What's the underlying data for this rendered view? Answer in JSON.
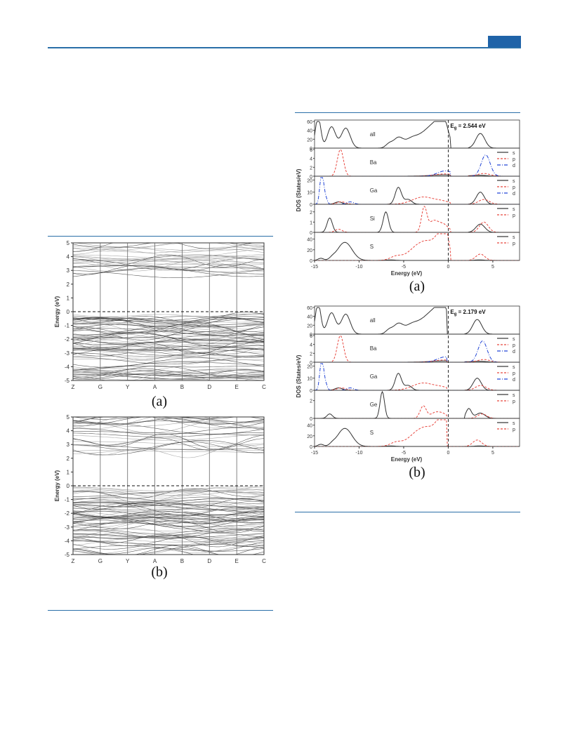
{
  "colors": {
    "rule": "#2a6fa8",
    "tab": "#1f63a8",
    "s_curve": "#333333",
    "p_curve": "#e8473f",
    "d_curve": "#2346d6"
  },
  "band_figure": {
    "charts": [
      {
        "caption": "(a)",
        "ylabel": "Energy (eV)",
        "yticks": [
          "5",
          "4",
          "3",
          "2",
          "1",
          "0",
          "-1",
          "-2",
          "-3",
          "-4",
          "-5"
        ],
        "kpoints": [
          "Z",
          "G",
          "Y",
          "A",
          "B",
          "D",
          "E",
          "C"
        ],
        "ylim": [
          -5,
          5
        ],
        "gap_conduction_min_eV": 2.6,
        "valence_max_eV": 0
      },
      {
        "caption": "(b)",
        "ylabel": "Energy (eV)",
        "yticks": [
          "5",
          "4",
          "3",
          "2",
          "1",
          "0",
          "-1",
          "-2",
          "-3",
          "-4",
          "-5"
        ],
        "kpoints": [
          "Z",
          "G",
          "Y",
          "A",
          "B",
          "D",
          "E",
          "C"
        ],
        "ylim": [
          -5,
          5
        ],
        "gap_conduction_min_eV": 2.2,
        "valence_max_eV": 0
      }
    ]
  },
  "dos_figure": {
    "charts": [
      {
        "caption": "(a)",
        "gap_label": "E",
        "gap_label_sub": "g",
        "gap_value": " = 2.544 eV",
        "ylabel": "DOS (States/eV)",
        "xlabel": "Energy (eV)",
        "xticks": [
          "-15",
          "-10",
          "-5",
          "0",
          "5"
        ],
        "panels": [
          {
            "label": "all",
            "yticks": [
              "60",
              "40",
              "20",
              "0"
            ],
            "legend": []
          },
          {
            "label": "Ba",
            "yticks": [
              "6",
              "4",
              "2",
              "0"
            ],
            "legend": [
              "s",
              "p",
              "d"
            ]
          },
          {
            "label": "Ga",
            "yticks": [
              "20",
              "10",
              "0"
            ],
            "legend": [
              "s",
              "p",
              "d"
            ]
          },
          {
            "label": "Si",
            "yticks": [
              "2",
              "1",
              "0"
            ],
            "legend": [
              "s",
              "p"
            ]
          },
          {
            "label": "S",
            "yticks": [
              "40",
              "20",
              "0"
            ],
            "legend": [
              "s",
              "p"
            ]
          }
        ]
      },
      {
        "caption": "(b)",
        "gap_label": "E",
        "gap_label_sub": "g",
        "gap_value": " = 2.179 eV",
        "ylabel": "DOS (States/eV)",
        "xlabel": "Energy (eV)",
        "xticks": [
          "-15",
          "-10",
          "-5",
          "0",
          "5"
        ],
        "panels": [
          {
            "label": "all",
            "yticks": [
              "60",
              "40",
              "20",
              "0"
            ],
            "legend": []
          },
          {
            "label": "Ba",
            "yticks": [
              "6",
              "4",
              "2",
              "0"
            ],
            "legend": [
              "s",
              "p",
              "d"
            ]
          },
          {
            "label": "Ga",
            "yticks": [
              "20",
              "10",
              "0"
            ],
            "legend": [
              "s",
              "p",
              "d"
            ]
          },
          {
            "label": "Ge",
            "yticks": [
              "2",
              "0"
            ],
            "legend": [
              "s",
              "p"
            ]
          },
          {
            "label": "S",
            "yticks": [
              "40",
              "20",
              "0"
            ],
            "legend": [
              "s",
              "p"
            ]
          }
        ]
      }
    ]
  }
}
